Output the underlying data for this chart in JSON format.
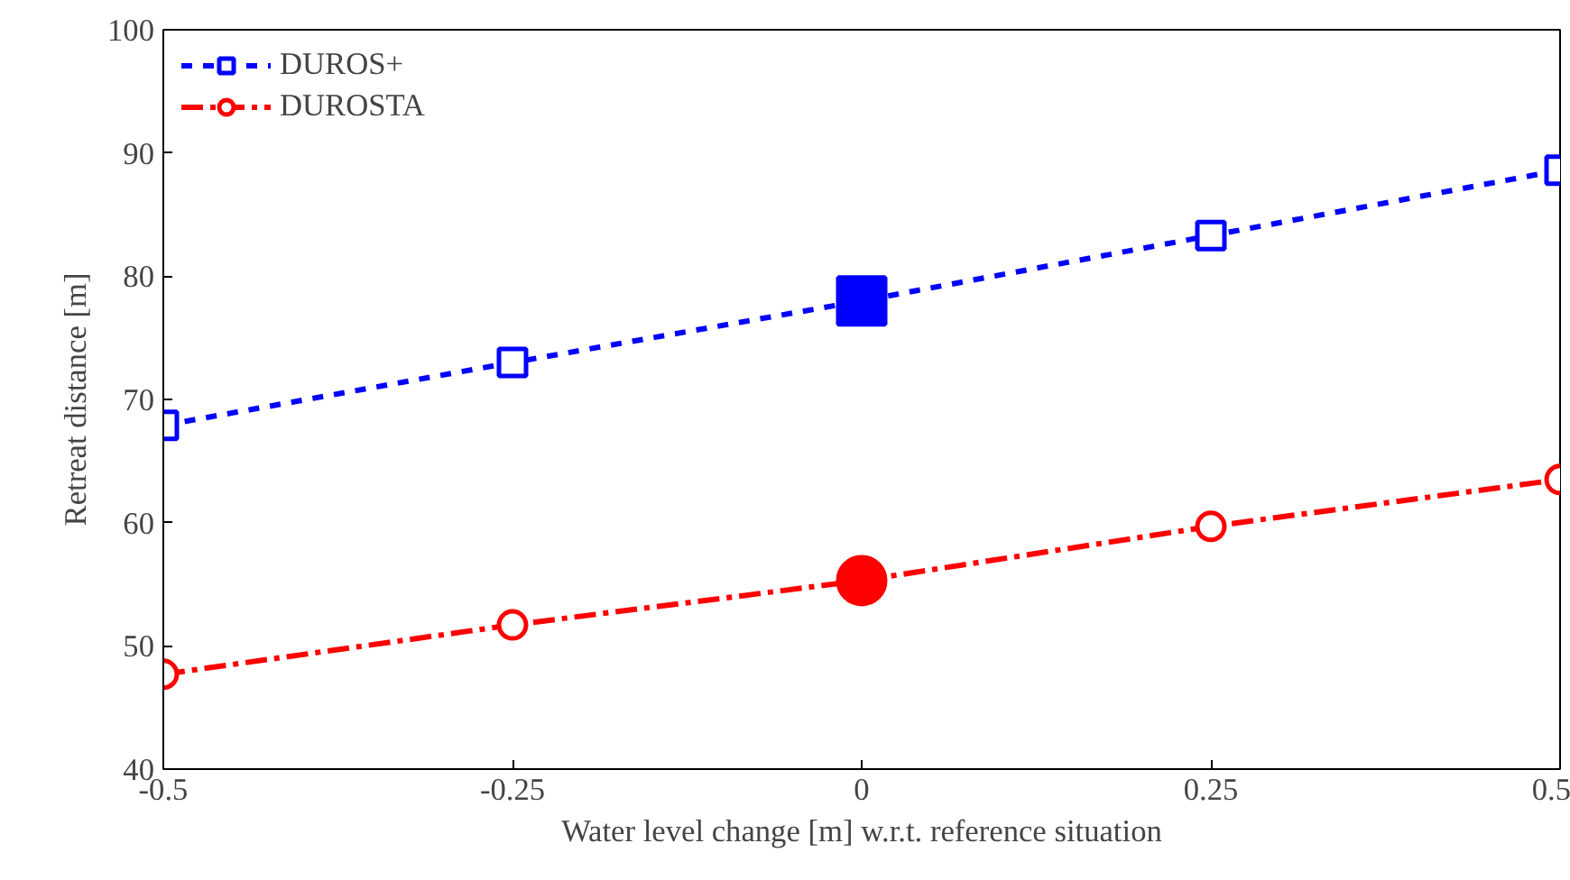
{
  "chart_data": {
    "type": "line",
    "xlabel": "Water level change [m] w.r.t. reference situation",
    "ylabel": "Retreat distance [m]",
    "x": [
      -0.5,
      -0.25,
      0,
      0.25,
      0.5
    ],
    "series": [
      {
        "name": "DUROS+",
        "color": "#0000ff",
        "values": [
          67.9,
          73.0,
          78.0,
          83.3,
          88.6
        ],
        "marker": "square",
        "line_style": "dashed"
      },
      {
        "name": "DUROSTA",
        "color": "#ff0000",
        "values": [
          47.7,
          51.7,
          55.3,
          59.7,
          63.5
        ],
        "marker": "circle",
        "line_style": "dashdot"
      },
      {
        "type": "scatter",
        "x": [
          0
        ],
        "color": "#0000ff",
        "values": [
          78.0
        ],
        "marker": "square"
      },
      {
        "type": "scatter",
        "x": [
          0
        ],
        "color": "#ff0000",
        "values": [
          55.3
        ],
        "marker": "circle"
      }
    ],
    "xlim": [
      -0.5,
      0.5
    ],
    "xticks": [
      -0.5,
      -0.25,
      0,
      0.25,
      0.5
    ],
    "ylim": [
      40,
      100
    ],
    "yticks": [
      40,
      50,
      60,
      70,
      80,
      90,
      100
    ],
    "grid": false,
    "legend": "top left"
  }
}
